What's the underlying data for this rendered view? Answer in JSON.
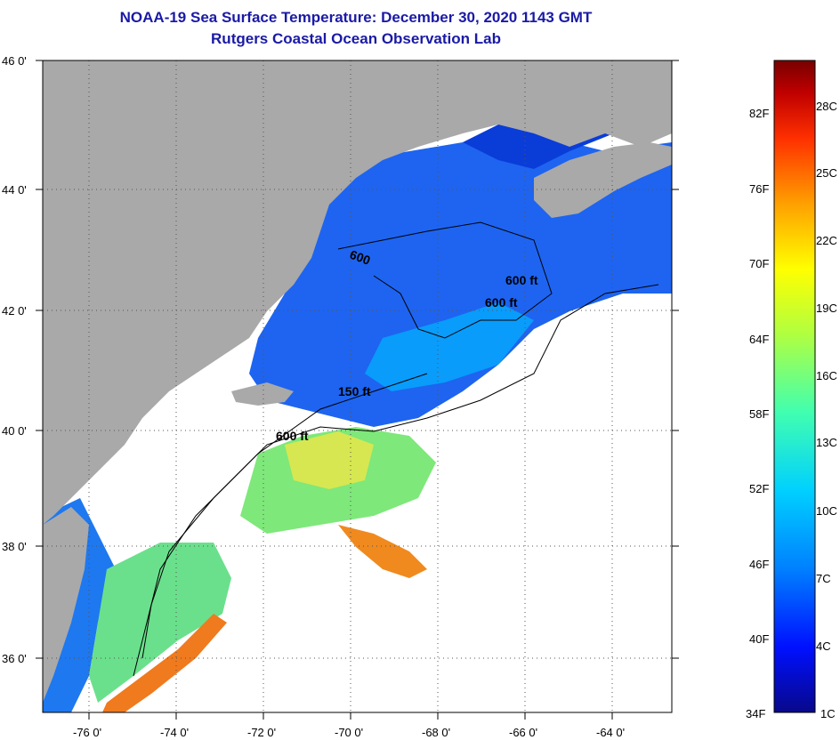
{
  "header": {
    "title": "NOAA-19 Sea Surface Temperature:  December 30, 2020 1143 GMT",
    "subtitle": "Rutgers Coastal Ocean Observation Lab"
  },
  "axes": {
    "lat_labels": [
      "46 0'",
      "44 0'",
      "42 0'",
      "40 0'",
      "38 0'",
      "36 0'"
    ],
    "lon_labels": [
      "-76 0'",
      "-74 0'",
      "-72 0'",
      "-70 0'",
      "-68 0'",
      "-66 0'",
      "-64 0'"
    ]
  },
  "contours": {
    "labels": [
      "600 ft",
      "600 ft",
      "600",
      "150 ft",
      "600 ft"
    ]
  },
  "colorbar": {
    "fahrenheit": [
      "82F",
      "76F",
      "70F",
      "64F",
      "58F",
      "52F",
      "46F",
      "40F",
      "34F"
    ],
    "celsius": [
      "28C",
      "25C",
      "22C",
      "19C",
      "16C",
      "13C",
      "10C",
      "7C",
      "4C",
      "1C"
    ],
    "colors": [
      "#08088a",
      "#0010ff",
      "#0080ff",
      "#00d0ff",
      "#40ffb0",
      "#b0ff40",
      "#ffff00",
      "#ffa000",
      "#ff3000",
      "#c00000",
      "#780000"
    ]
  },
  "colors": {
    "land": "#a9a9a9",
    "cloud": "#ffffff",
    "cold_water": "#1e64f0",
    "title": "#1a1aa6"
  }
}
